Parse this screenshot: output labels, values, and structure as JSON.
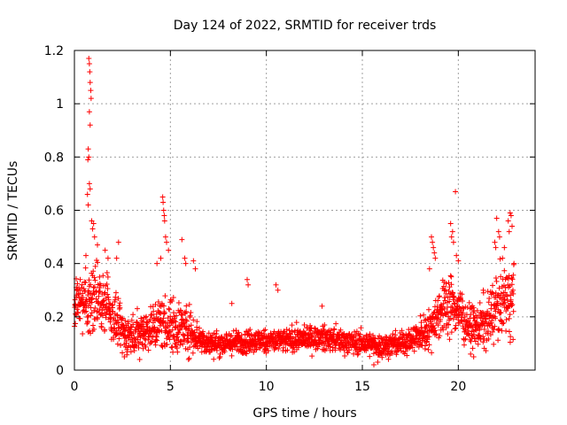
{
  "chart_data": {
    "type": "scatter",
    "title": "Day 124 of 2022, SRMTID for receiver trds",
    "xlabel": "GPS time / hours",
    "ylabel": "SRMTID / TECUs",
    "xlim": [
      0,
      24
    ],
    "ylim": [
      0,
      1.2
    ],
    "xticks": [
      "0",
      "5",
      "10",
      "15",
      "20"
    ],
    "yticks": [
      "0",
      "0.2",
      "0.4",
      "0.6",
      "0.8",
      "1",
      "1.2"
    ],
    "grid": true,
    "marker": "plus",
    "color": "#ff0000",
    "profile": [
      [
        0.0,
        0.22,
        0.06
      ],
      [
        0.5,
        0.25,
        0.08
      ],
      [
        1.0,
        0.28,
        0.09
      ],
      [
        1.5,
        0.25,
        0.08
      ],
      [
        2.0,
        0.2,
        0.06
      ],
      [
        2.5,
        0.14,
        0.05
      ],
      [
        3.0,
        0.13,
        0.05
      ],
      [
        3.5,
        0.15,
        0.05
      ],
      [
        4.0,
        0.16,
        0.06
      ],
      [
        4.5,
        0.18,
        0.07
      ],
      [
        5.0,
        0.17,
        0.07
      ],
      [
        5.5,
        0.16,
        0.07
      ],
      [
        6.0,
        0.15,
        0.06
      ],
      [
        6.5,
        0.12,
        0.04
      ],
      [
        7.0,
        0.1,
        0.03
      ],
      [
        8.0,
        0.1,
        0.03
      ],
      [
        9.0,
        0.11,
        0.03
      ],
      [
        10.0,
        0.11,
        0.03
      ],
      [
        11.0,
        0.11,
        0.03
      ],
      [
        12.0,
        0.12,
        0.03
      ],
      [
        13.0,
        0.12,
        0.03
      ],
      [
        14.0,
        0.11,
        0.03
      ],
      [
        15.0,
        0.1,
        0.03
      ],
      [
        16.0,
        0.09,
        0.03
      ],
      [
        17.0,
        0.1,
        0.03
      ],
      [
        18.0,
        0.13,
        0.04
      ],
      [
        18.5,
        0.16,
        0.05
      ],
      [
        19.0,
        0.22,
        0.07
      ],
      [
        19.5,
        0.25,
        0.08
      ],
      [
        20.0,
        0.23,
        0.07
      ],
      [
        20.5,
        0.17,
        0.05
      ],
      [
        21.0,
        0.16,
        0.05
      ],
      [
        21.5,
        0.18,
        0.07
      ],
      [
        22.0,
        0.24,
        0.08
      ],
      [
        22.5,
        0.26,
        0.09
      ],
      [
        22.9,
        0.27,
        0.09
      ]
    ],
    "outliers": [
      [
        0.75,
        1.17
      ],
      [
        0.78,
        1.15
      ],
      [
        0.8,
        1.12
      ],
      [
        0.82,
        1.08
      ],
      [
        0.85,
        1.05
      ],
      [
        0.87,
        1.02
      ],
      [
        0.78,
        0.97
      ],
      [
        0.82,
        0.92
      ],
      [
        0.72,
        0.83
      ],
      [
        0.75,
        0.8
      ],
      [
        0.7,
        0.79
      ],
      [
        0.78,
        0.7
      ],
      [
        0.82,
        0.68
      ],
      [
        0.68,
        0.66
      ],
      [
        0.72,
        0.62
      ],
      [
        0.9,
        0.56
      ],
      [
        1.0,
        0.55
      ],
      [
        0.95,
        0.53
      ],
      [
        1.05,
        0.5
      ],
      [
        1.2,
        0.47
      ],
      [
        0.6,
        0.43
      ],
      [
        1.6,
        0.45
      ],
      [
        1.75,
        0.42
      ],
      [
        2.3,
        0.48
      ],
      [
        2.2,
        0.42
      ],
      [
        4.6,
        0.65
      ],
      [
        4.62,
        0.63
      ],
      [
        4.65,
        0.6
      ],
      [
        4.68,
        0.58
      ],
      [
        4.7,
        0.56
      ],
      [
        4.75,
        0.5
      ],
      [
        4.8,
        0.48
      ],
      [
        4.9,
        0.45
      ],
      [
        4.5,
        0.42
      ],
      [
        4.3,
        0.4
      ],
      [
        5.6,
        0.49
      ],
      [
        5.75,
        0.42
      ],
      [
        5.8,
        0.4
      ],
      [
        6.2,
        0.41
      ],
      [
        6.3,
        0.38
      ],
      [
        9.0,
        0.34
      ],
      [
        9.05,
        0.32
      ],
      [
        10.5,
        0.32
      ],
      [
        10.6,
        0.3
      ],
      [
        8.2,
        0.25
      ],
      [
        12.9,
        0.24
      ],
      [
        18.6,
        0.5
      ],
      [
        18.65,
        0.48
      ],
      [
        18.7,
        0.46
      ],
      [
        18.75,
        0.44
      ],
      [
        18.8,
        0.42
      ],
      [
        18.5,
        0.38
      ],
      [
        19.6,
        0.55
      ],
      [
        19.7,
        0.52
      ],
      [
        19.65,
        0.5
      ],
      [
        19.75,
        0.48
      ],
      [
        19.85,
        0.67
      ],
      [
        19.9,
        0.43
      ],
      [
        20.0,
        0.41
      ],
      [
        22.0,
        0.57
      ],
      [
        22.1,
        0.52
      ],
      [
        22.15,
        0.5
      ],
      [
        21.9,
        0.48
      ],
      [
        21.95,
        0.46
      ],
      [
        22.7,
        0.59
      ],
      [
        22.75,
        0.58
      ],
      [
        22.6,
        0.56
      ],
      [
        22.8,
        0.54
      ],
      [
        22.65,
        0.52
      ],
      [
        22.9,
        0.4
      ],
      [
        22.3,
        0.42
      ],
      [
        22.4,
        0.46
      ],
      [
        21.3,
        0.3
      ],
      [
        0.1,
        0.31
      ],
      [
        0.3,
        0.34
      ],
      [
        2.6,
        0.05
      ],
      [
        20.8,
        0.05
      ],
      [
        15.6,
        0.02
      ],
      [
        15.8,
        0.03
      ],
      [
        3.4,
        0.04
      ]
    ]
  }
}
